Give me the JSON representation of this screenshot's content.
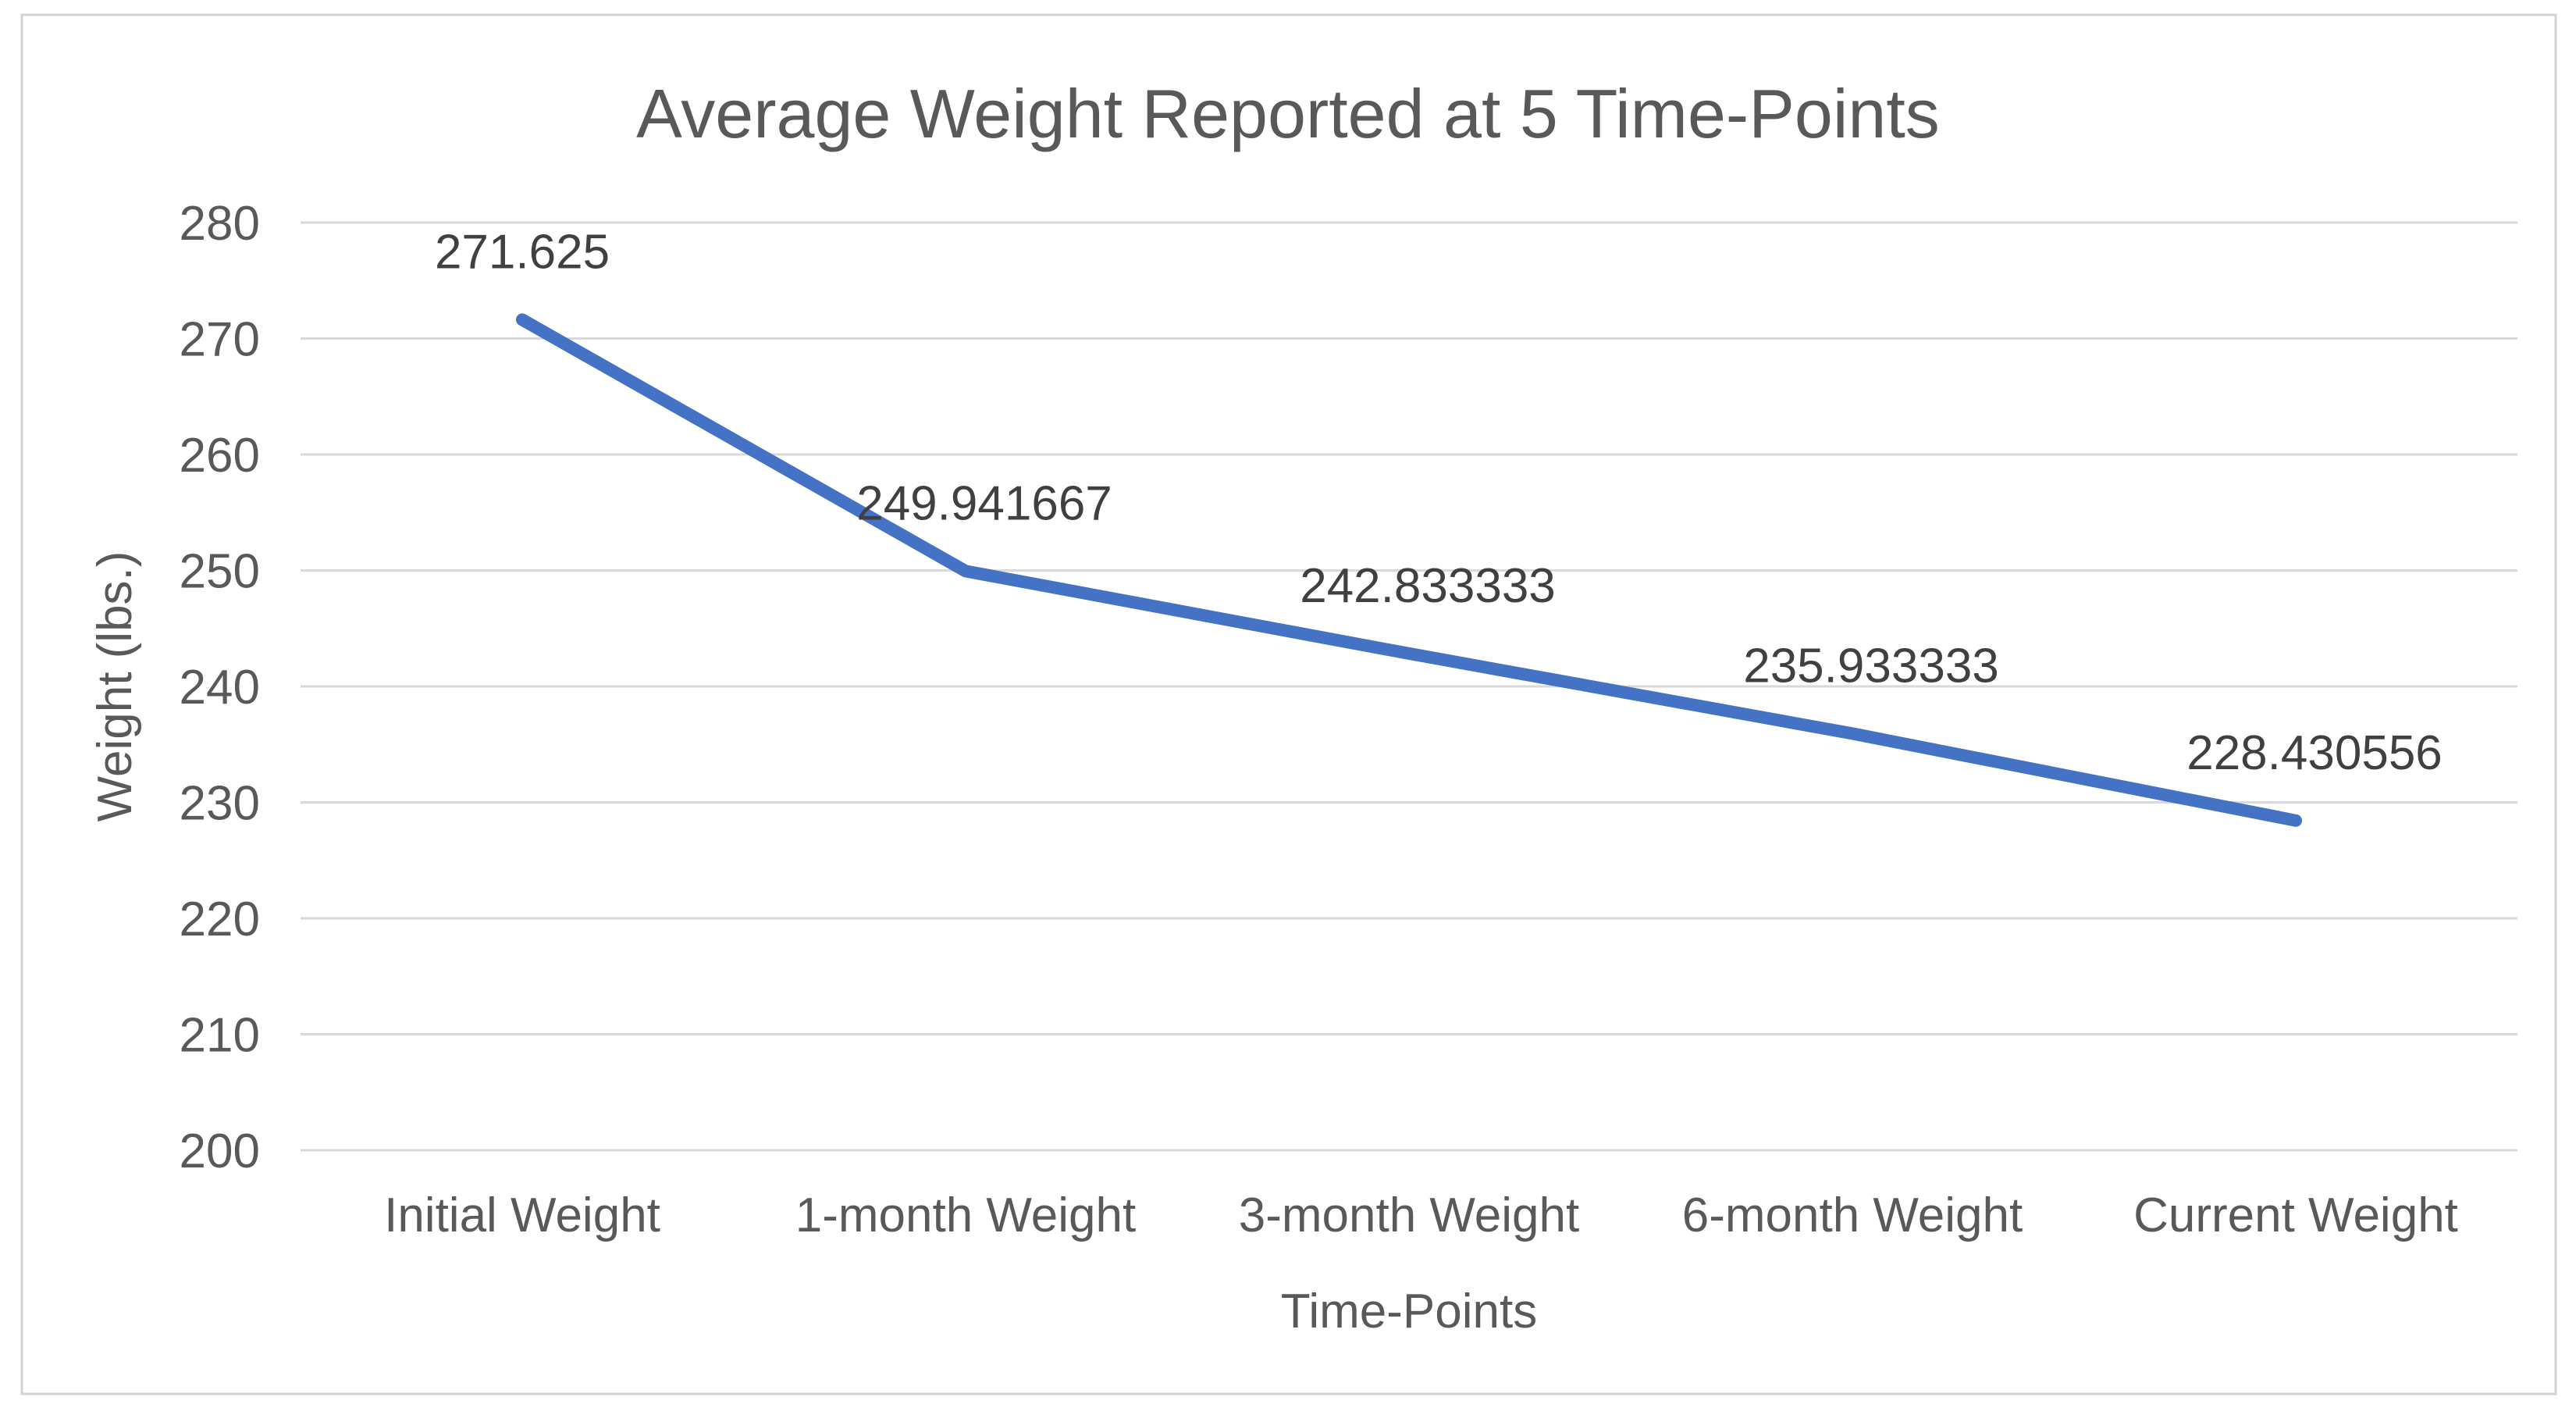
{
  "window": {
    "background": "#FFFFFF"
  },
  "chart_data": {
    "type": "line",
    "title": "Average Weight Reported at 5 Time-Points",
    "categories": [
      "Initial Weight",
      "1-month Weight",
      "3-month Weight",
      "6-month Weight",
      "Current Weight"
    ],
    "values": [
      271.625,
      249.941667,
      242.833333,
      235.933333,
      228.430556
    ],
    "data_labels": [
      "271.625",
      "249.941667",
      "242.833333",
      "235.933333",
      "228.430556"
    ],
    "xlabel": "Time-Points",
    "ylabel": "Weight (lbs.)",
    "ylim": [
      200,
      280
    ],
    "ytick_step": 10,
    "ytick_labels": [
      "280",
      "270",
      "260",
      "250",
      "240",
      "230",
      "220",
      "210",
      "200"
    ],
    "grid": "horizontal-only",
    "legend": "none",
    "marker": "none",
    "colors": {
      "line": "#4472C4",
      "gridline": "#D9D9D9",
      "chart_border": "#D2D2D2",
      "axis_text": "#595959",
      "title_text": "#595959",
      "data_label_text": "#404040",
      "background": "#FFFFFF"
    }
  }
}
